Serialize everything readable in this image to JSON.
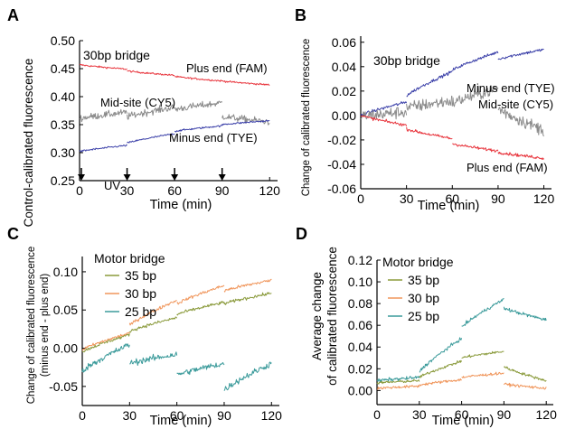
{
  "colors": {
    "plus": "#e8353d",
    "minus": "#3a3fa8",
    "mid": "#8a8a8a",
    "bp35": "#8a9a3b",
    "bp30": "#f0955a",
    "bp25": "#3a9a9a",
    "axis": "#000000"
  },
  "chart_data": [
    {
      "panel": "A",
      "type": "line",
      "ylabel": "Control-calibrated fluorescence",
      "xlabel": "Time (min)",
      "xlim": [
        0,
        125
      ],
      "ylim": [
        0.25,
        0.5
      ],
      "xticks": [
        "0",
        "30",
        "60",
        "90",
        "120"
      ],
      "yticks": [
        "0.25",
        "0.30",
        "0.35",
        "0.40",
        "0.45",
        "0.50"
      ],
      "annotation": "30bp bridge",
      "uv_label": "UV",
      "uv_times": [
        0,
        30,
        60,
        90
      ],
      "series": [
        {
          "name": "Plus end (FAM)",
          "color_key": "plus",
          "noise": 0.0015,
          "segments": [
            [
              0,
              30,
              0.457,
              0.449
            ],
            [
              30,
              60,
              0.446,
              0.438
            ],
            [
              60,
              90,
              0.436,
              0.428
            ],
            [
              90,
              120,
              0.428,
              0.421
            ]
          ]
        },
        {
          "name": "Mid-site (CY5)",
          "color_key": "mid",
          "noise": 0.006,
          "segments": [
            [
              0,
              30,
              0.361,
              0.372
            ],
            [
              30,
              60,
              0.364,
              0.381
            ],
            [
              60,
              90,
              0.377,
              0.389
            ],
            [
              90,
              120,
              0.365,
              0.355
            ]
          ]
        },
        {
          "name": "Minus end (TYE)",
          "color_key": "minus",
          "noise": 0.0015,
          "segments": [
            [
              0,
              30,
              0.302,
              0.313
            ],
            [
              30,
              60,
              0.317,
              0.334
            ],
            [
              60,
              90,
              0.338,
              0.348
            ],
            [
              90,
              120,
              0.35,
              0.357
            ]
          ]
        }
      ]
    },
    {
      "panel": "B",
      "type": "line",
      "ylabel": "Change of calibrated fluorescence",
      "xlabel": "Time (min)",
      "xlim": [
        0,
        125
      ],
      "ylim": [
        -0.06,
        0.065
      ],
      "xticks": [
        "0",
        "30",
        "60",
        "90",
        "120"
      ],
      "yticks": [
        "-0.06",
        "-0.04",
        "-0.02",
        "0.00",
        "0.02",
        "0.04",
        "0.06"
      ],
      "annotation": "30bp bridge",
      "series": [
        {
          "name": "Minus end (TYE)",
          "color_key": "minus",
          "noise": 0.0012,
          "segments": [
            [
              0,
              30,
              0.0,
              0.011
            ],
            [
              30,
              60,
              0.016,
              0.036
            ],
            [
              60,
              90,
              0.037,
              0.052
            ],
            [
              90,
              120,
              0.046,
              0.054
            ]
          ]
        },
        {
          "name": "Mid-site (CY5)",
          "color_key": "mid",
          "noise": 0.005,
          "segments": [
            [
              0,
              30,
              -0.001,
              0.003
            ],
            [
              30,
              60,
              0.006,
              0.012
            ],
            [
              60,
              90,
              0.01,
              0.022
            ],
            [
              90,
              120,
              0.006,
              -0.012
            ]
          ]
        },
        {
          "name": "Plus end (FAM)",
          "color_key": "plus",
          "noise": 0.0012,
          "segments": [
            [
              0,
              30,
              0.0,
              -0.008
            ],
            [
              30,
              60,
              -0.011,
              -0.019
            ],
            [
              60,
              90,
              -0.023,
              -0.029
            ],
            [
              90,
              120,
              -0.03,
              -0.035
            ]
          ]
        }
      ]
    },
    {
      "panel": "C",
      "type": "line",
      "ylabel_lines": [
        "Change of calibrated fluorescence",
        "(minus end - plus end)"
      ],
      "xlabel": "Time (min)",
      "xlim": [
        0,
        125
      ],
      "ylim": [
        -0.075,
        0.12
      ],
      "xticks": [
        "0",
        "30",
        "60",
        "90",
        "120"
      ],
      "yticks": [
        "-0.05",
        "0.00",
        "0.05",
        "0.10"
      ],
      "legend_title": "Motor bridge",
      "series": [
        {
          "name": "35 bp",
          "color_key": "bp35",
          "noise": 0.002,
          "segments": [
            [
              0,
              30,
              -0.005,
              0.018
            ],
            [
              30,
              60,
              0.022,
              0.04
            ],
            [
              60,
              90,
              0.044,
              0.06
            ],
            [
              90,
              120,
              0.058,
              0.072
            ]
          ]
        },
        {
          "name": "30 bp",
          "color_key": "bp30",
          "noise": 0.002,
          "segments": [
            [
              0,
              30,
              -0.002,
              0.02
            ],
            [
              30,
              60,
              0.03,
              0.063
            ],
            [
              60,
              90,
              0.058,
              0.082
            ],
            [
              90,
              120,
              0.075,
              0.089
            ]
          ]
        },
        {
          "name": "25 bp",
          "color_key": "bp25",
          "noise": 0.004,
          "segments": [
            [
              0,
              30,
              -0.03,
              0.005
            ],
            [
              30,
              60,
              -0.02,
              -0.008
            ],
            [
              60,
              90,
              -0.035,
              -0.02
            ],
            [
              90,
              120,
              -0.055,
              -0.02
            ]
          ]
        }
      ]
    },
    {
      "panel": "D",
      "type": "line",
      "ylabel_lines": [
        "Average change",
        "of calibrated fluorescence"
      ],
      "xlabel": "Time (min)",
      "xlim": [
        0,
        125
      ],
      "ylim": [
        -0.013,
        0.12
      ],
      "xticks": [
        "0",
        "30",
        "60",
        "90",
        "120"
      ],
      "yticks": [
        "0.00",
        "0.02",
        "0.04",
        "0.06",
        "0.08",
        "0.10",
        "0.12"
      ],
      "legend_title": "Motor bridge",
      "series": [
        {
          "name": "35 bp",
          "color_key": "bp35",
          "noise": 0.0012,
          "segments": [
            [
              0,
              30,
              0.007,
              0.009
            ],
            [
              30,
              60,
              0.012,
              0.027
            ],
            [
              60,
              90,
              0.03,
              0.036
            ],
            [
              90,
              120,
              0.022,
              0.009
            ]
          ]
        },
        {
          "name": "30 bp",
          "color_key": "bp30",
          "noise": 0.0012,
          "segments": [
            [
              0,
              30,
              0.002,
              0.004
            ],
            [
              30,
              60,
              0.005,
              0.01
            ],
            [
              60,
              90,
              0.012,
              0.016
            ],
            [
              90,
              120,
              0.006,
              0.002
            ]
          ]
        },
        {
          "name": "25 bp",
          "color_key": "bp25",
          "noise": 0.0015,
          "segments": [
            [
              0,
              30,
              0.009,
              0.012
            ],
            [
              30,
              60,
              0.017,
              0.048
            ],
            [
              60,
              90,
              0.058,
              0.084
            ],
            [
              90,
              120,
              0.076,
              0.065
            ]
          ]
        }
      ]
    }
  ]
}
